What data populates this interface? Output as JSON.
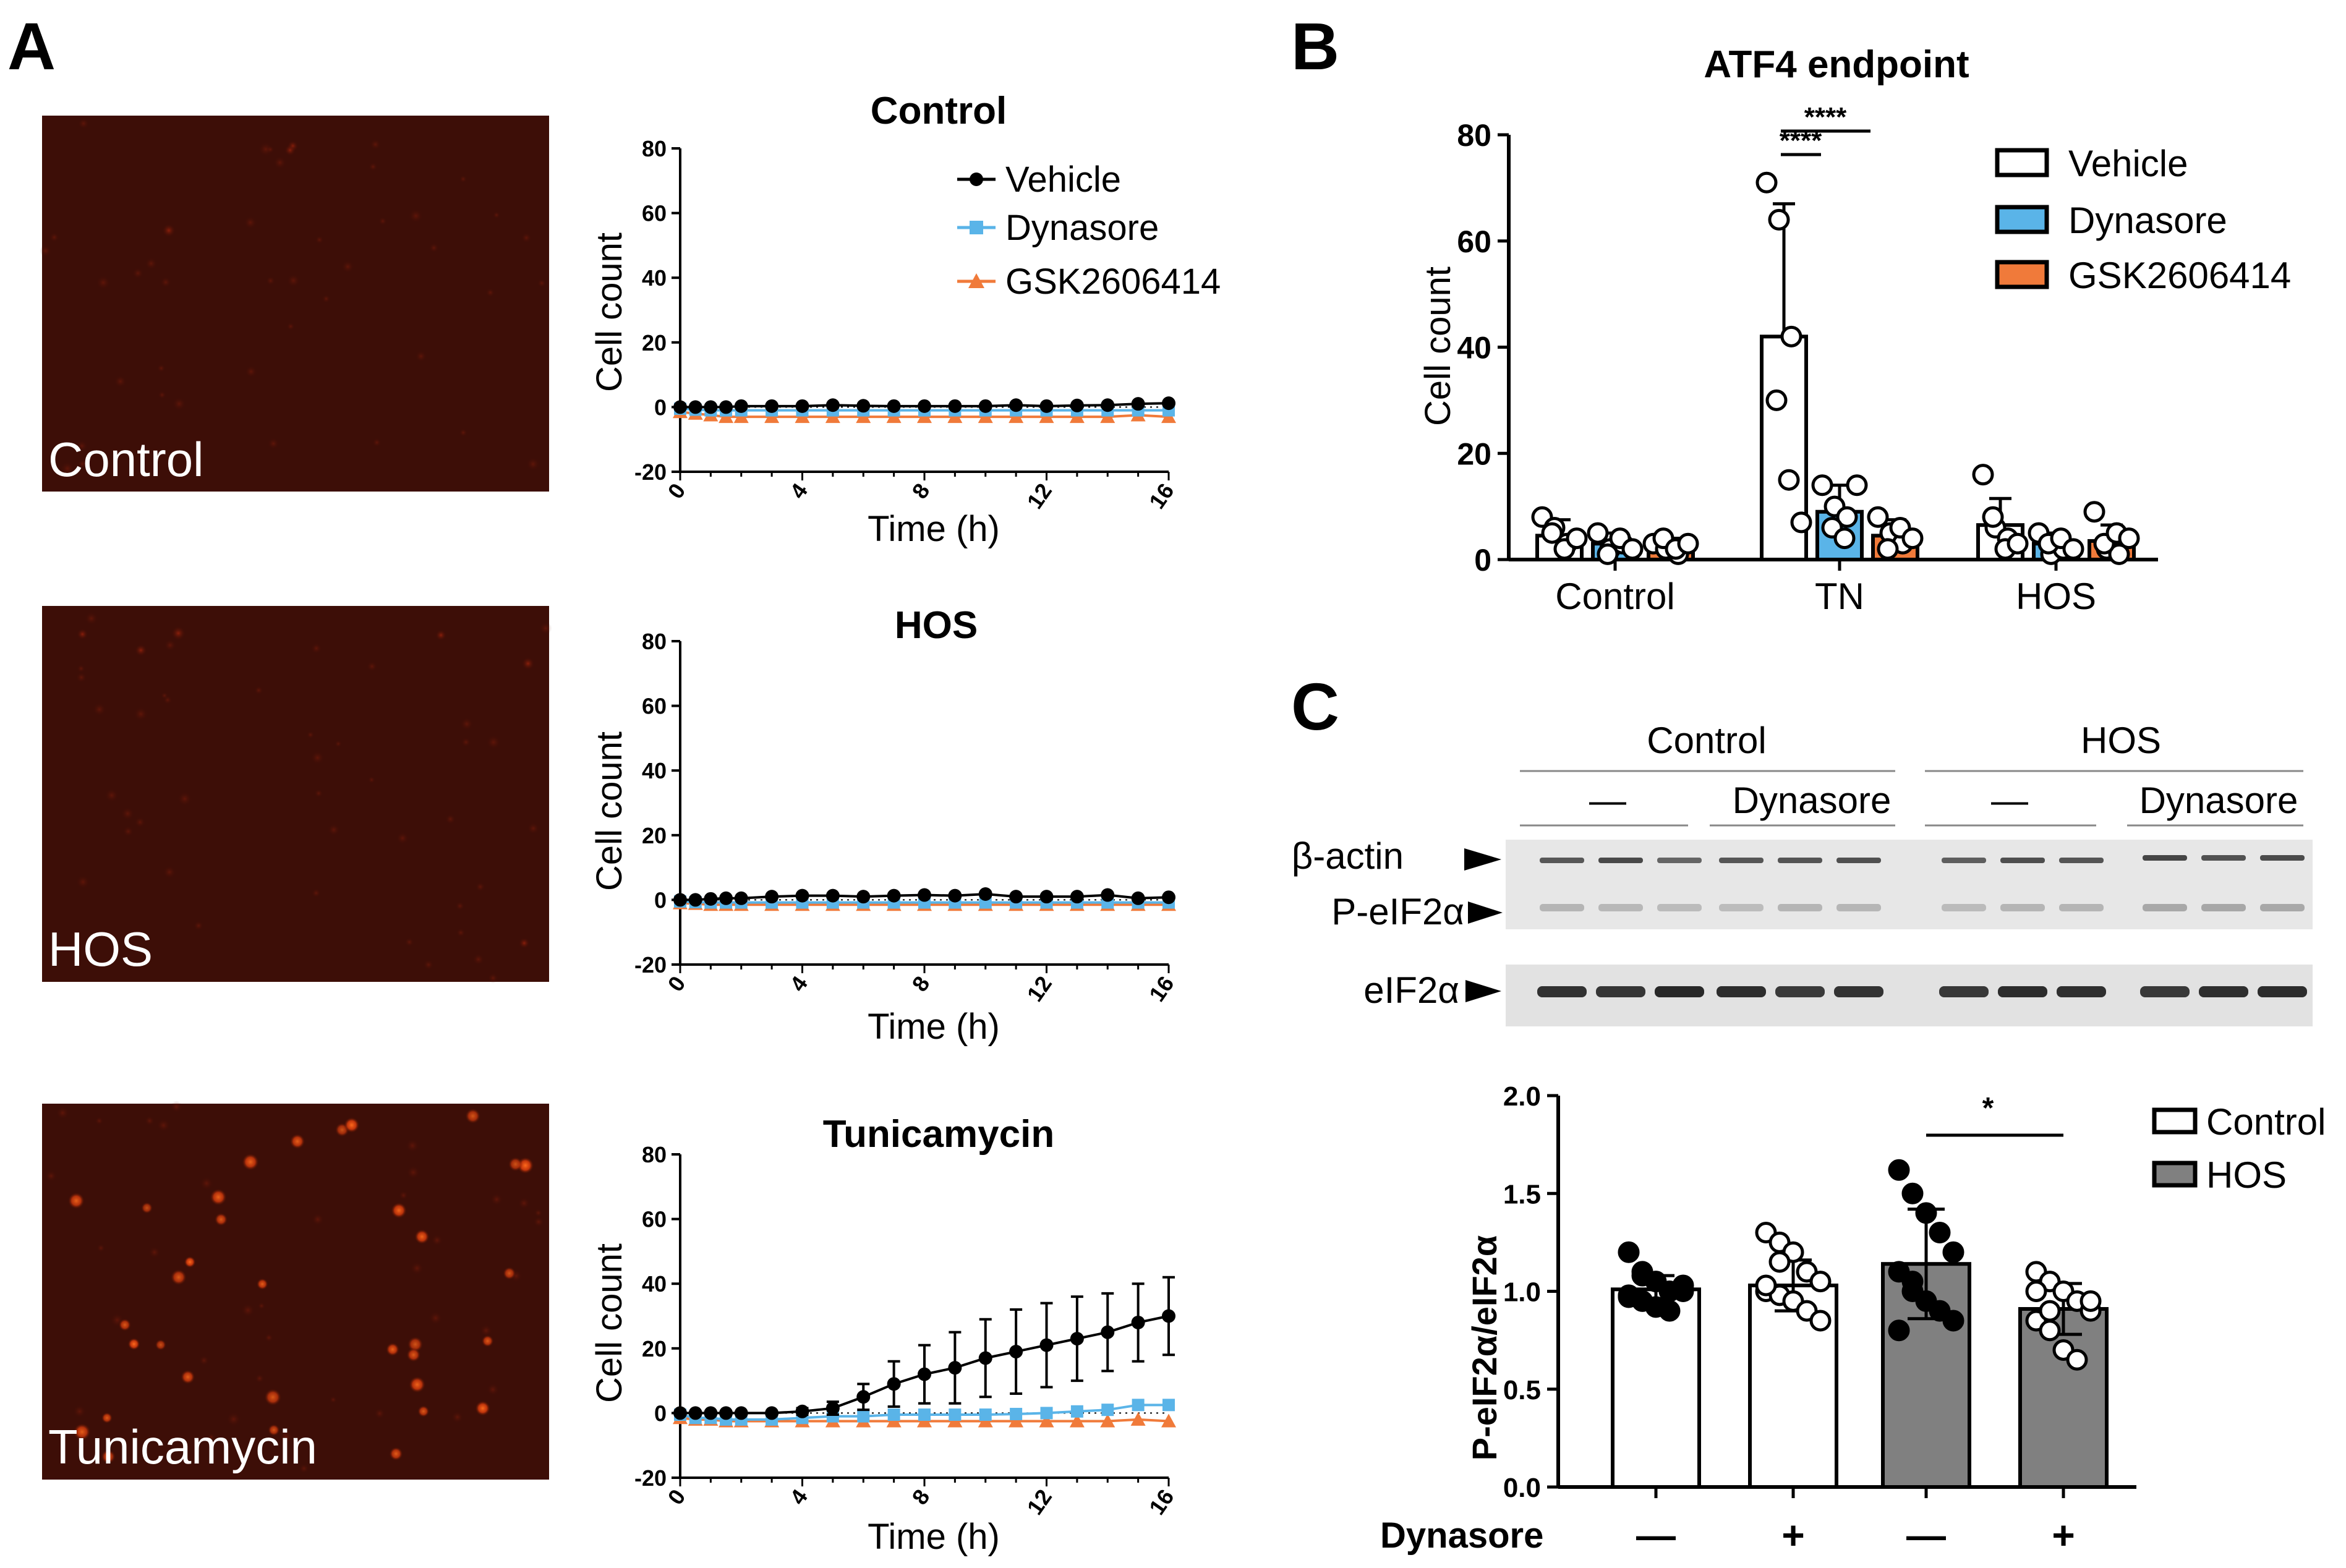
{
  "panels": {
    "a": "A",
    "b": "B",
    "c": "C"
  },
  "micrographs": [
    {
      "label": "Control",
      "spots": 3
    },
    {
      "label": "HOS",
      "spots": 6
    },
    {
      "label": "Tunicamycin",
      "spots": 34
    }
  ],
  "timecourse": {
    "xlabel": "Time (h)",
    "ylabel": "Cell count",
    "xticks": [
      "0",
      "4",
      "8",
      "12",
      "16"
    ],
    "yticks": [
      "80",
      "60",
      "40",
      "20",
      "0",
      "-20"
    ],
    "legend": [
      "Vehicle",
      "Dynasore",
      "GSK2606414"
    ],
    "colors": {
      "vehicle": "#000000",
      "dynasore": "#5ab4e8",
      "gsk": "#f07a3a"
    }
  },
  "chart_data": [
    {
      "type": "line",
      "title": "Control",
      "x": [
        0,
        0.5,
        1,
        1.5,
        2,
        3,
        4,
        5,
        6,
        7,
        8,
        9,
        10,
        11,
        12,
        13,
        14,
        15,
        16
      ],
      "xlabel": "Time (h)",
      "ylabel": "Cell count",
      "xlim": [
        0,
        16
      ],
      "ylim": [
        -20,
        80
      ],
      "series": [
        {
          "name": "Vehicle",
          "values": [
            0,
            0,
            0,
            0,
            0.3,
            0.3,
            0.3,
            0.6,
            0.4,
            0.3,
            0.3,
            0.3,
            0.3,
            0.6,
            0.3,
            0.5,
            0.6,
            1.0,
            1.2
          ]
        },
        {
          "name": "Dynasore",
          "values": [
            -0.5,
            -0.8,
            -1.0,
            -1.0,
            -1.0,
            -1.0,
            -1.0,
            -1.0,
            -1.0,
            -1.0,
            -1.0,
            -1.0,
            -1.0,
            -1.0,
            -1.0,
            -1.0,
            -1.0,
            -1.0,
            -1.0
          ]
        },
        {
          "name": "GSK2606414",
          "values": [
            -1.5,
            -2.0,
            -2.5,
            -3.0,
            -3.0,
            -3.0,
            -3.0,
            -3.0,
            -3.0,
            -3.0,
            -3.0,
            -3.0,
            -3.0,
            -3.0,
            -3.0,
            -3.0,
            -3.0,
            -2.5,
            -3.0
          ]
        }
      ]
    },
    {
      "type": "line",
      "title": "HOS",
      "x": [
        0,
        0.5,
        1,
        1.5,
        2,
        3,
        4,
        5,
        6,
        7,
        8,
        9,
        10,
        11,
        12,
        13,
        14,
        15,
        16
      ],
      "xlabel": "Time (h)",
      "ylabel": "Cell count",
      "xlim": [
        0,
        16
      ],
      "ylim": [
        -20,
        80
      ],
      "series": [
        {
          "name": "Vehicle",
          "values": [
            0,
            0,
            0.3,
            0.5,
            0.5,
            1.0,
            1.3,
            1.3,
            1.0,
            1.3,
            1.5,
            1.3,
            1.8,
            1.0,
            1.0,
            1.0,
            1.5,
            0.5,
            0.8
          ]
        },
        {
          "name": "Dynasore",
          "values": [
            -0.5,
            -0.7,
            -0.8,
            -0.8,
            -0.8,
            -0.8,
            -0.8,
            -0.8,
            -0.8,
            -0.8,
            -0.8,
            -0.8,
            -0.8,
            -0.8,
            -0.8,
            -0.8,
            -0.8,
            -0.8,
            -0.8
          ]
        },
        {
          "name": "GSK2606414",
          "values": [
            -1.0,
            -1.2,
            -1.5,
            -1.5,
            -1.5,
            -1.5,
            -1.5,
            -1.5,
            -1.5,
            -1.5,
            -1.5,
            -1.5,
            -1.5,
            -1.5,
            -1.5,
            -1.5,
            -1.5,
            -1.5,
            -1.5
          ]
        }
      ]
    },
    {
      "type": "line",
      "title": "Tunicamycin",
      "x": [
        0,
        0.5,
        1,
        1.5,
        2,
        3,
        4,
        5,
        6,
        7,
        8,
        9,
        10,
        11,
        12,
        13,
        14,
        15,
        16
      ],
      "xlabel": "Time (h)",
      "ylabel": "Cell count",
      "xlim": [
        0,
        16
      ],
      "ylim": [
        -20,
        80
      ],
      "series": [
        {
          "name": "Vehicle",
          "values": [
            0,
            0,
            0,
            0,
            0,
            0,
            0.5,
            1.5,
            5,
            9,
            12,
            14,
            17,
            19,
            21,
            23,
            25,
            28,
            30
          ],
          "error": [
            0,
            0,
            0,
            0,
            0,
            0,
            1,
            2,
            4,
            7,
            9,
            11,
            12,
            13,
            13,
            13,
            12,
            12,
            12
          ]
        },
        {
          "name": "Dynasore",
          "values": [
            -0.5,
            -1.5,
            -1.5,
            -2.0,
            -2.0,
            -2.0,
            -1.5,
            -1.0,
            -1.0,
            -0.5,
            -0.5,
            -0.5,
            -0.5,
            -0.3,
            0,
            0.5,
            1.0,
            2.5,
            2.5
          ]
        },
        {
          "name": "GSK2606414",
          "values": [
            -1.5,
            -2.0,
            -2.0,
            -2.5,
            -2.5,
            -2.5,
            -2.5,
            -2.5,
            -2.5,
            -2.5,
            -2.5,
            -2.5,
            -2.5,
            -2.5,
            -2.5,
            -2.5,
            -2.5,
            -2.0,
            -2.5
          ]
        }
      ]
    },
    {
      "type": "bar",
      "title": "ATF4 endpoint",
      "categories": [
        "Control",
        "TN",
        "HOS"
      ],
      "ylabel": "Cell count",
      "ylim": [
        0,
        80
      ],
      "yticks": [
        "80",
        "60",
        "40",
        "20",
        "0"
      ],
      "series": [
        {
          "name": "Vehicle",
          "values": [
            4.5,
            42,
            6.5
          ],
          "error": [
            3,
            25,
            5
          ],
          "points": [
            [
              8,
              6,
              3,
              5,
              2,
              4
            ],
            [
              71,
              64,
              42,
              30,
              15,
              7
            ],
            [
              16,
              6,
              4,
              8,
              2,
              3
            ]
          ]
        },
        {
          "name": "Dynasore",
          "values": [
            3.0,
            9.0,
            3.0
          ],
          "error": [
            2,
            5,
            2
          ],
          "points": [
            [
              5,
              2,
              3,
              1,
              4,
              2
            ],
            [
              14,
              10,
              8,
              6,
              4,
              14
            ],
            [
              5,
              1,
              2,
              3,
              4,
              2
            ]
          ]
        },
        {
          "name": "GSK2606414",
          "values": [
            2.5,
            4.5,
            3.5
          ],
          "error": [
            1.5,
            3,
            3
          ],
          "points": [
            [
              3,
              2,
              1,
              4,
              2,
              3
            ],
            [
              8,
              5,
              3,
              2,
              6,
              4
            ],
            [
              9,
              2,
              1,
              3,
              5,
              4
            ]
          ]
        }
      ],
      "colors": [
        "#ffffff",
        "#5ab4e8",
        "#f07a3a"
      ],
      "significance": [
        "****",
        "****"
      ]
    },
    {
      "type": "bar",
      "title": "",
      "categories": [
        "—",
        "+",
        "—",
        "+"
      ],
      "xlabel": "Dynasore",
      "ylabel": "P-eIF2α/eIF2α",
      "ylim": [
        0,
        2.0
      ],
      "yticks": [
        "2.0",
        "1.5",
        "1.0",
        "0.5",
        "0.0"
      ],
      "series": [
        {
          "name": "values",
          "values": [
            1.01,
            1.03,
            1.14,
            0.91
          ],
          "error": [
            0.07,
            0.13,
            0.28,
            0.13
          ],
          "group": [
            "Control",
            "Control",
            "HOS",
            "HOS"
          ],
          "points": [
            [
              1.2,
              1.1,
              1.05,
              1.0,
              1.0,
              0.98,
              0.95,
              0.92,
              0.9,
              1.03,
              0.97,
              1.08
            ],
            [
              1.3,
              1.25,
              1.2,
              1.1,
              1.05,
              1.0,
              0.98,
              0.95,
              0.9,
              0.85,
              1.03,
              1.15
            ],
            [
              1.62,
              1.5,
              1.4,
              1.3,
              1.2,
              1.1,
              1.0,
              0.95,
              0.9,
              0.85,
              0.8,
              1.05
            ],
            [
              1.1,
              1.05,
              1.0,
              0.95,
              0.9,
              0.85,
              0.8,
              0.7,
              0.65,
              0.95,
              1.0,
              0.9
            ]
          ]
        }
      ],
      "legend": [
        "Control",
        "HOS"
      ],
      "colors": {
        "Control": "#ffffff",
        "HOS": "#808080"
      },
      "significance": [
        "*"
      ]
    }
  ],
  "blot": {
    "groups": [
      "Control",
      "HOS"
    ],
    "subgroups": [
      "—",
      "Dynasore",
      "—",
      "Dynasore"
    ],
    "rows": [
      "β-actin",
      "P-eIF2α",
      "eIF2α"
    ]
  }
}
